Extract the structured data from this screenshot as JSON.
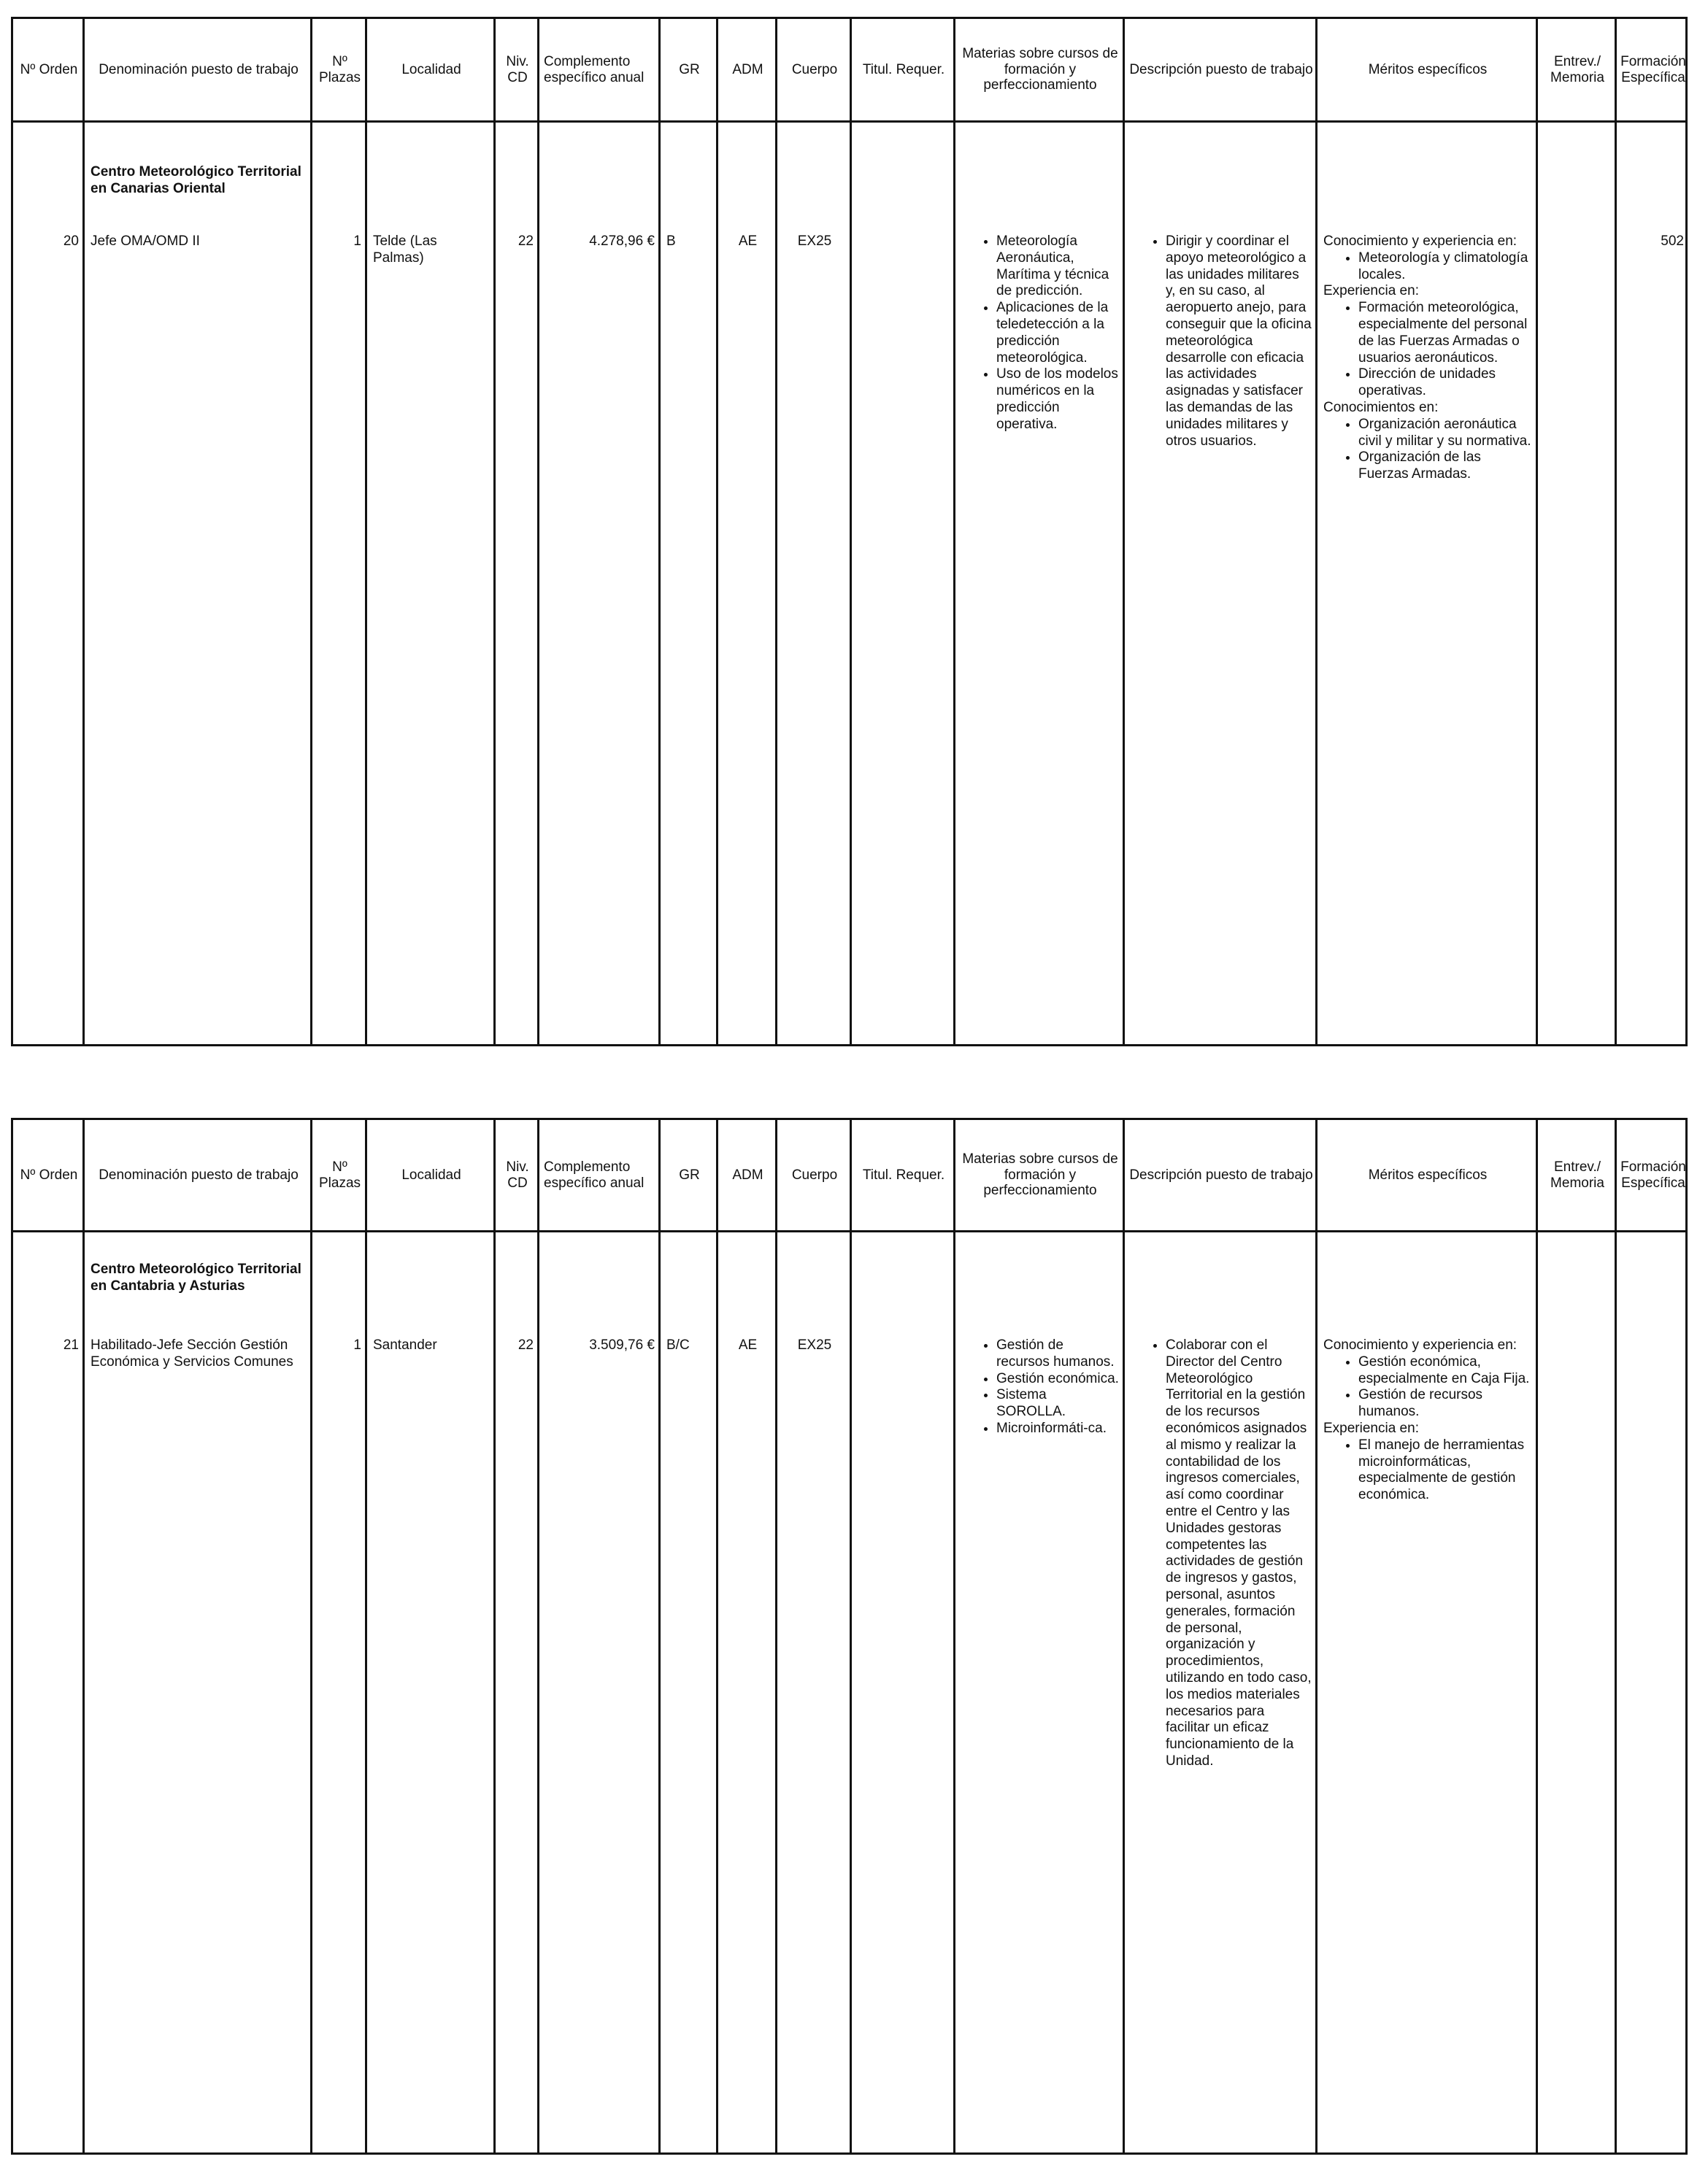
{
  "tables": [
    {
      "header": [
        "Nº Orden",
        "Denominación puesto de trabajo",
        "Nº Plazas",
        "Localidad",
        "Niv. CD",
        "Complemento específico anual",
        "GR",
        "ADM",
        "Cuerpo",
        "Titul. Requer.",
        "Materias sobre cursos de formación y perfeccionamiento",
        "Descripción puesto de trabajo",
        "Méritos específicos",
        "Entrev./ Memoria",
        "Formación Específica"
      ],
      "section": "Centro Meteorológico Territorial en Canarias Oriental",
      "row": {
        "orden": "20",
        "denominacion": "Jefe OMA/OMD II",
        "plazas": "1",
        "localidad": "Telde (Las Palmas)",
        "nivel": "22",
        "complemento": "4.278,96 €",
        "gr": "B",
        "adm": "AE",
        "cuerpo": "EX25",
        "materias": [
          "Meteorología Aeronáutica, Marítima y técnica de predicción.",
          "Aplicaciones de la teledetección a la predicción meteorológica.",
          "Uso de los modelos numéricos en la predicción operativa."
        ],
        "descripcion": [
          "Dirigir y coordinar el apoyo meteorológico a las unidades militares y, en su caso, al aeropuerto anejo, para conseguir que la oficina meteorológica desarrolle con eficacia las actividades asignadas y satisfacer las demandas de las unidades militares y otros usuarios."
        ],
        "meritos": [
          {
            "label": "Conocimiento y experiencia en:",
            "items": [
              "Meteorología y climatología locales."
            ]
          },
          {
            "label": "Experiencia en:",
            "items": [
              "Formación meteorológica, especialmente del personal de las Fuerzas Armadas o usuarios aeronáuticos.",
              "Dirección de unidades operativas."
            ]
          },
          {
            "label": "Conocimientos en:",
            "items": [
              "Organización aeronáutica civil y militar y su normativa.",
              "Organización de las Fuerzas Armadas."
            ]
          }
        ],
        "formacion": "502"
      }
    },
    {
      "header": [
        "Nº Orden",
        "Denominación puesto de trabajo",
        "Nº Plazas",
        "Localidad",
        "Niv. CD",
        "Complemento específico anual",
        "GR",
        "ADM",
        "Cuerpo",
        "Titul. Requer.",
        "Materias sobre cursos de formación y perfeccionamiento",
        "Descripción puesto de trabajo",
        "Méritos específicos",
        "Entrev./ Memoria",
        "Formación Específica"
      ],
      "section": "Centro Meteorológico Territorial en Cantabria y Asturias",
      "row": {
        "orden": "21",
        "denominacion": "Habilitado-Jefe Sección Gestión Económica y Servicios Comunes",
        "plazas": "1",
        "localidad": "Santander",
        "nivel": "22",
        "complemento": "3.509,76 €",
        "gr": "B/C",
        "adm": "AE",
        "cuerpo": "EX25",
        "materias": [
          "Gestión de recursos humanos.",
          "Gestión económica.",
          "Sistema SOROLLA.",
          "Microinformáti-ca."
        ],
        "descripcion": [
          "Colaborar con el Director del Centro Meteorológico Territorial en la gestión de los recursos económicos asignados al mismo y realizar la contabilidad de los ingresos comerciales, así como coordinar entre el Centro y las Unidades gestoras competentes las actividades de gestión de ingresos y gastos, personal, asuntos generales, formación de personal, organización y procedimientos, utilizando en todo caso, los medios materiales necesarios para facilitar un eficaz funcionamiento de la Unidad."
        ],
        "meritos": [
          {
            "label": "Conocimiento y experiencia en:",
            "items": [
              "Gestión económica, especialmente en Caja Fija.",
              "Gestión de recursos humanos."
            ]
          },
          {
            "label": "Experiencia en:",
            "items": [
              "El manejo de herramientas microinformáticas, especialmente de gestión económica."
            ]
          }
        ]
      }
    }
  ]
}
